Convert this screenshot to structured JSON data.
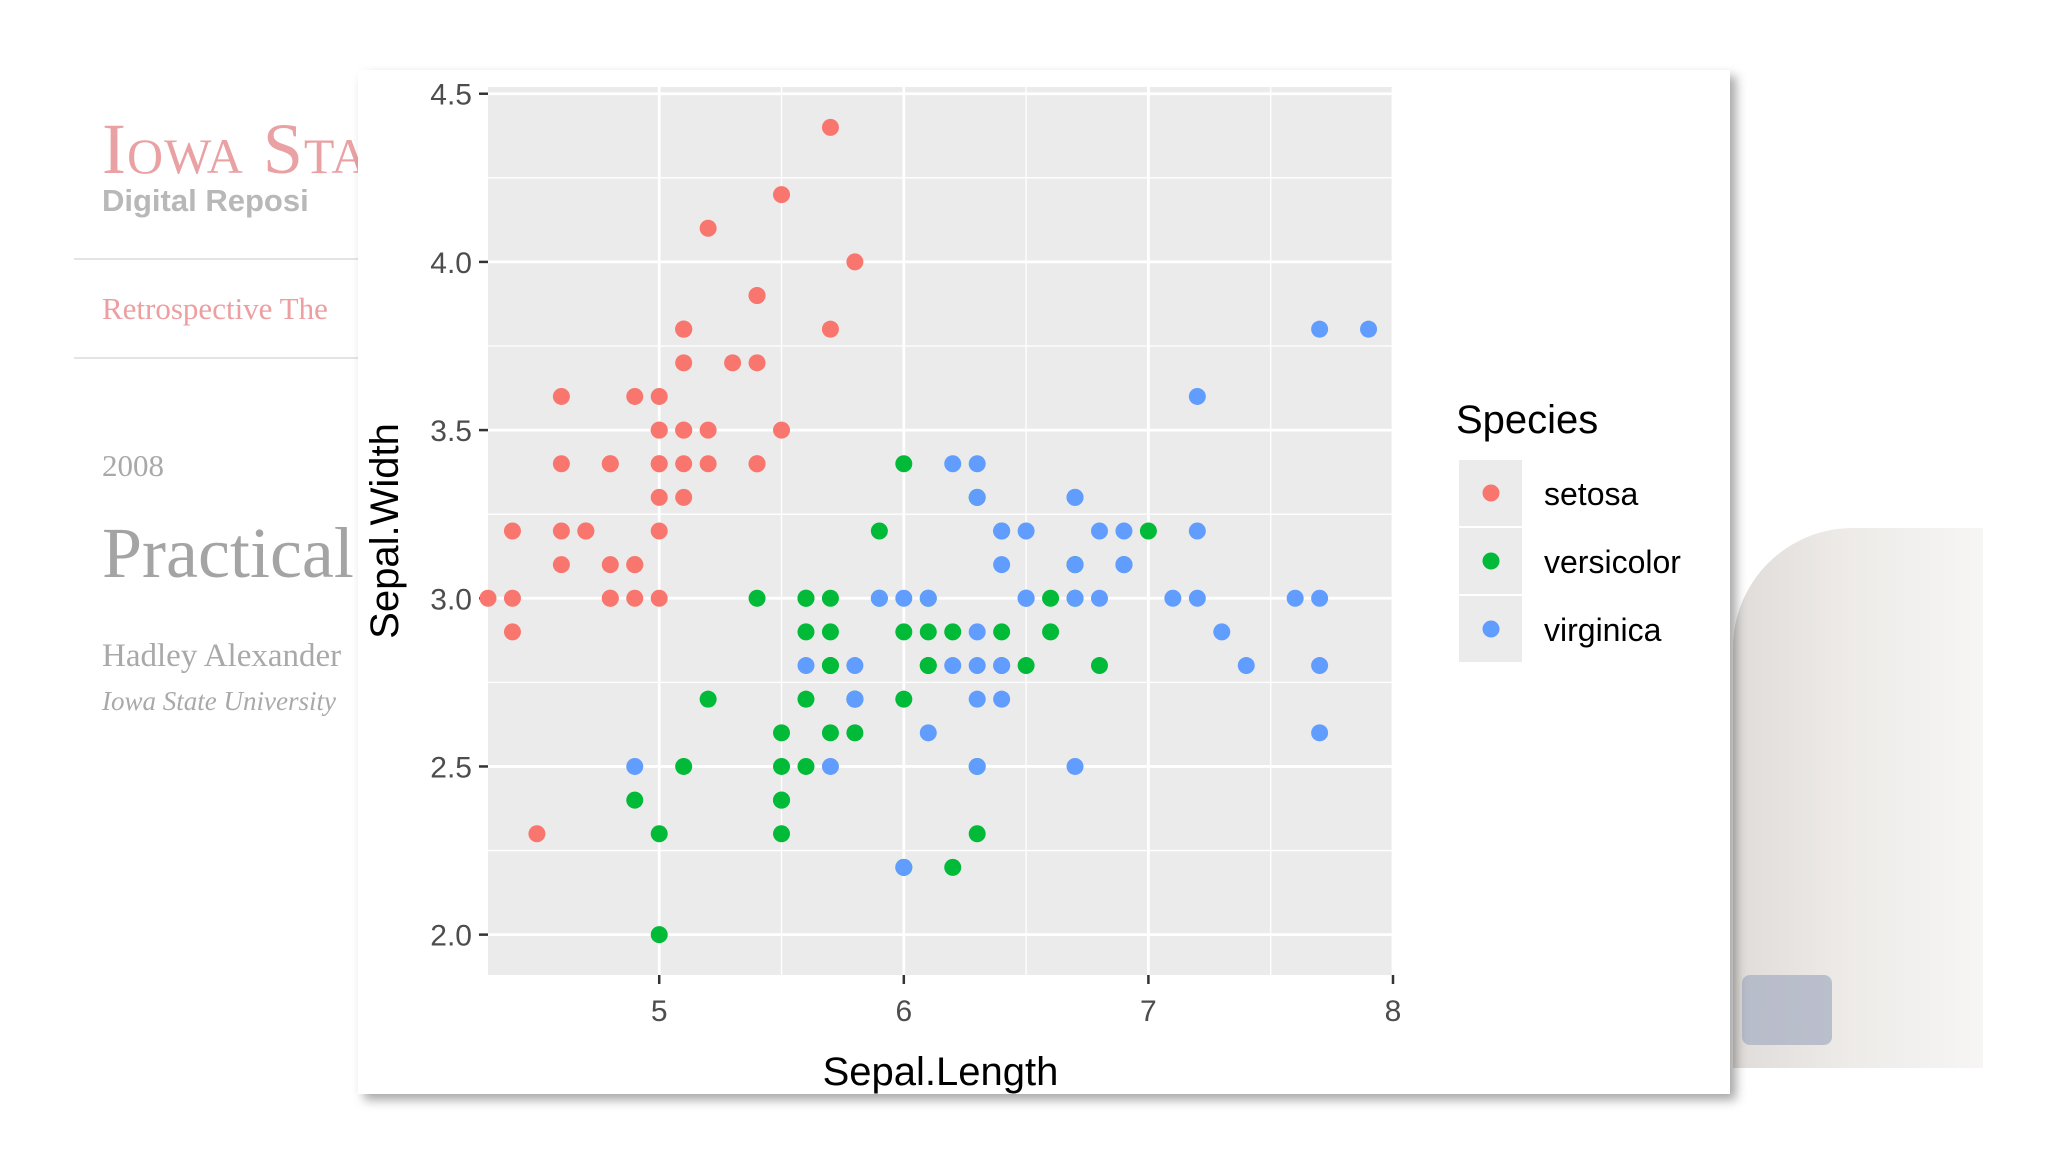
{
  "background_doc": {
    "logo": "Iowa Sta",
    "subtitle": "Digital Reposi",
    "series": "Retrospective The",
    "year": "2008",
    "title": "Practical",
    "author": "Hadley Alexander",
    "institution": "Iowa State University"
  },
  "colors": {
    "setosa": "#F8766D",
    "versicolor": "#00BA38",
    "virginica": "#619CFF",
    "panel_background": "#EBEBEB",
    "grid": "#FFFFFF"
  },
  "chart_data": {
    "type": "scatter",
    "title": "",
    "xlabel": "Sepal.Length",
    "ylabel": "Sepal.Width",
    "xlim": [
      4.3,
      8.0
    ],
    "ylim": [
      1.88,
      4.52
    ],
    "x_ticks": [
      5,
      6,
      7,
      8
    ],
    "x_tick_labels": [
      "5",
      "6",
      "7",
      "8"
    ],
    "y_ticks": [
      2.0,
      2.5,
      3.0,
      3.5,
      4.0,
      4.5
    ],
    "y_tick_labels": [
      "2.0",
      "2.5",
      "3.0",
      "3.5",
      "4.0",
      "4.5"
    ],
    "grid": true,
    "legend": {
      "title": "Species",
      "position": "right",
      "entries": [
        "setosa",
        "versicolor",
        "virginica"
      ]
    },
    "series": [
      {
        "name": "setosa",
        "points": [
          [
            5.1,
            3.5
          ],
          [
            4.9,
            3.0
          ],
          [
            4.7,
            3.2
          ],
          [
            4.6,
            3.1
          ],
          [
            5.0,
            3.6
          ],
          [
            5.4,
            3.9
          ],
          [
            4.6,
            3.4
          ],
          [
            5.0,
            3.4
          ],
          [
            4.4,
            2.9
          ],
          [
            4.9,
            3.1
          ],
          [
            5.4,
            3.7
          ],
          [
            4.8,
            3.4
          ],
          [
            4.8,
            3.0
          ],
          [
            4.3,
            3.0
          ],
          [
            5.8,
            4.0
          ],
          [
            5.7,
            4.4
          ],
          [
            5.4,
            3.9
          ],
          [
            5.1,
            3.5
          ],
          [
            5.7,
            3.8
          ],
          [
            5.1,
            3.8
          ],
          [
            5.4,
            3.4
          ],
          [
            5.1,
            3.7
          ],
          [
            4.6,
            3.6
          ],
          [
            5.1,
            3.3
          ],
          [
            4.8,
            3.4
          ],
          [
            5.0,
            3.0
          ],
          [
            5.0,
            3.4
          ],
          [
            5.2,
            3.5
          ],
          [
            5.2,
            3.4
          ],
          [
            4.7,
            3.2
          ],
          [
            4.8,
            3.1
          ],
          [
            5.4,
            3.4
          ],
          [
            5.2,
            4.1
          ],
          [
            5.5,
            4.2
          ],
          [
            4.9,
            3.1
          ],
          [
            5.0,
            3.2
          ],
          [
            5.5,
            3.5
          ],
          [
            4.9,
            3.6
          ],
          [
            4.4,
            3.0
          ],
          [
            5.1,
            3.4
          ],
          [
            5.0,
            3.5
          ],
          [
            4.5,
            2.3
          ],
          [
            4.4,
            3.2
          ],
          [
            5.0,
            3.5
          ],
          [
            5.1,
            3.8
          ],
          [
            4.8,
            3.0
          ],
          [
            5.1,
            3.8
          ],
          [
            4.6,
            3.2
          ],
          [
            5.3,
            3.7
          ],
          [
            5.0,
            3.3
          ]
        ]
      },
      {
        "name": "versicolor",
        "points": [
          [
            7.0,
            3.2
          ],
          [
            6.4,
            3.2
          ],
          [
            6.9,
            3.1
          ],
          [
            5.5,
            2.3
          ],
          [
            6.5,
            2.8
          ],
          [
            5.7,
            2.8
          ],
          [
            6.3,
            3.3
          ],
          [
            4.9,
            2.4
          ],
          [
            6.6,
            2.9
          ],
          [
            5.2,
            2.7
          ],
          [
            5.0,
            2.0
          ],
          [
            5.9,
            3.0
          ],
          [
            6.0,
            2.2
          ],
          [
            6.1,
            2.9
          ],
          [
            5.6,
            2.9
          ],
          [
            6.7,
            3.1
          ],
          [
            5.6,
            3.0
          ],
          [
            5.8,
            2.7
          ],
          [
            6.2,
            2.2
          ],
          [
            5.6,
            2.5
          ],
          [
            5.9,
            3.2
          ],
          [
            6.1,
            2.8
          ],
          [
            6.3,
            2.5
          ],
          [
            6.1,
            2.8
          ],
          [
            6.4,
            2.9
          ],
          [
            6.6,
            3.0
          ],
          [
            6.8,
            2.8
          ],
          [
            6.7,
            3.0
          ],
          [
            6.0,
            2.9
          ],
          [
            5.7,
            2.6
          ],
          [
            5.5,
            2.4
          ],
          [
            5.5,
            2.4
          ],
          [
            5.8,
            2.7
          ],
          [
            6.0,
            2.7
          ],
          [
            5.4,
            3.0
          ],
          [
            6.0,
            3.4
          ],
          [
            6.7,
            3.1
          ],
          [
            6.3,
            2.3
          ],
          [
            5.6,
            3.0
          ],
          [
            5.5,
            2.5
          ],
          [
            5.5,
            2.6
          ],
          [
            6.1,
            3.0
          ],
          [
            5.8,
            2.6
          ],
          [
            5.0,
            2.3
          ],
          [
            5.6,
            2.7
          ],
          [
            5.7,
            3.0
          ],
          [
            5.7,
            2.9
          ],
          [
            6.2,
            2.9
          ],
          [
            5.1,
            2.5
          ],
          [
            5.7,
            2.8
          ]
        ]
      },
      {
        "name": "virginica",
        "points": [
          [
            6.3,
            3.3
          ],
          [
            5.8,
            2.7
          ],
          [
            7.1,
            3.0
          ],
          [
            6.3,
            2.9
          ],
          [
            6.5,
            3.0
          ],
          [
            7.6,
            3.0
          ],
          [
            4.9,
            2.5
          ],
          [
            7.3,
            2.9
          ],
          [
            6.7,
            2.5
          ],
          [
            7.2,
            3.6
          ],
          [
            6.5,
            3.2
          ],
          [
            6.4,
            2.7
          ],
          [
            6.8,
            3.0
          ],
          [
            5.7,
            2.5
          ],
          [
            5.8,
            2.8
          ],
          [
            6.4,
            3.2
          ],
          [
            6.5,
            3.0
          ],
          [
            7.7,
            3.8
          ],
          [
            7.7,
            2.6
          ],
          [
            6.0,
            2.2
          ],
          [
            6.9,
            3.2
          ],
          [
            5.6,
            2.8
          ],
          [
            7.7,
            2.8
          ],
          [
            6.3,
            2.7
          ],
          [
            6.7,
            3.3
          ],
          [
            7.2,
            3.2
          ],
          [
            6.2,
            2.8
          ],
          [
            6.1,
            3.0
          ],
          [
            6.4,
            2.8
          ],
          [
            7.2,
            3.0
          ],
          [
            7.4,
            2.8
          ],
          [
            7.9,
            3.8
          ],
          [
            6.4,
            2.8
          ],
          [
            6.3,
            2.8
          ],
          [
            6.1,
            2.6
          ],
          [
            7.7,
            3.0
          ],
          [
            6.3,
            3.4
          ],
          [
            6.4,
            3.1
          ],
          [
            6.0,
            3.0
          ],
          [
            6.9,
            3.1
          ],
          [
            6.7,
            3.1
          ],
          [
            6.9,
            3.1
          ],
          [
            5.8,
            2.7
          ],
          [
            6.8,
            3.2
          ],
          [
            6.7,
            3.3
          ],
          [
            6.7,
            3.0
          ],
          [
            6.3,
            2.5
          ],
          [
            6.5,
            3.0
          ],
          [
            6.2,
            3.4
          ],
          [
            5.9,
            3.0
          ]
        ]
      }
    ]
  }
}
